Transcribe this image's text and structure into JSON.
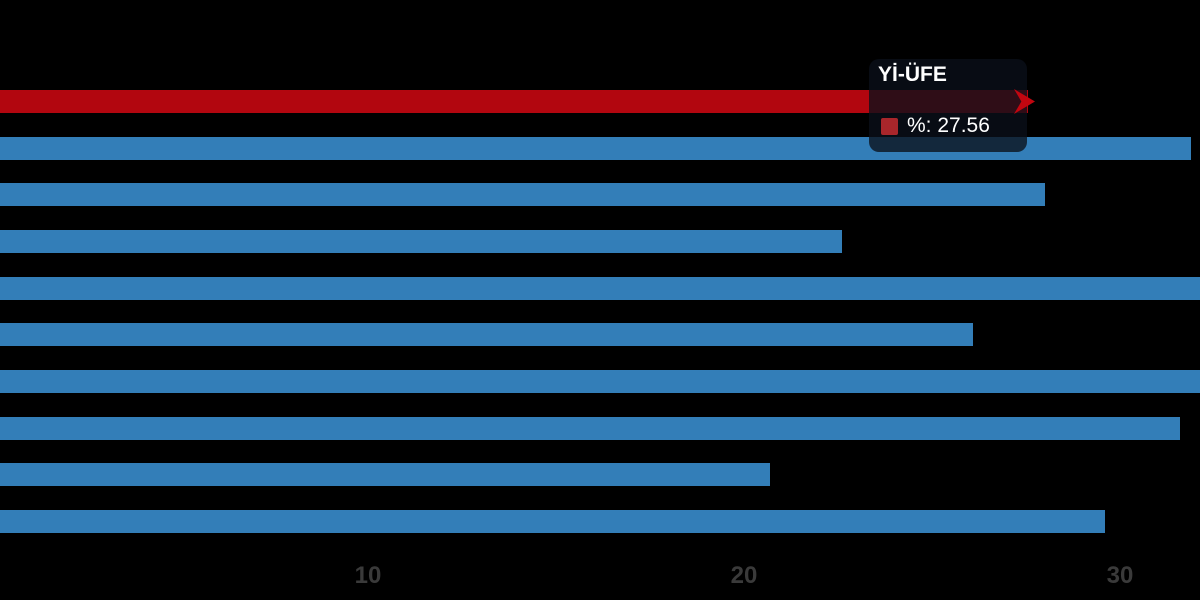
{
  "chart_data": {
    "type": "bar",
    "orientation": "horizontal",
    "title": "",
    "xlabel": "",
    "ylabel": "",
    "background_color": "#000000",
    "grid": false,
    "legend_position": "none",
    "categories": [
      "Yİ-ÜFE",
      "",
      "",
      "",
      "",
      "",
      "",
      "",
      "",
      ""
    ],
    "series": [
      {
        "name": "%",
        "values": [
          27.56,
          31.9,
          28.0,
          22.6,
          32.5,
          26.1,
          32.5,
          31.6,
          20.7,
          29.6
        ]
      }
    ],
    "highlight_index": 0,
    "values_clipped_at_right_edge": [
      4,
      6
    ],
    "bar_color_default": "#337eb8",
    "bar_color_highlight": "#b2060f",
    "xticks": [
      10,
      20,
      30
    ],
    "xlim": [
      0,
      32.1
    ],
    "tick_label_color": "#3a3a3a"
  },
  "tooltip": {
    "title": "Yİ-ÜFE",
    "series_label": "%",
    "value": "27.56",
    "text": "%: 27.56",
    "marker_color": "#a8262b"
  }
}
